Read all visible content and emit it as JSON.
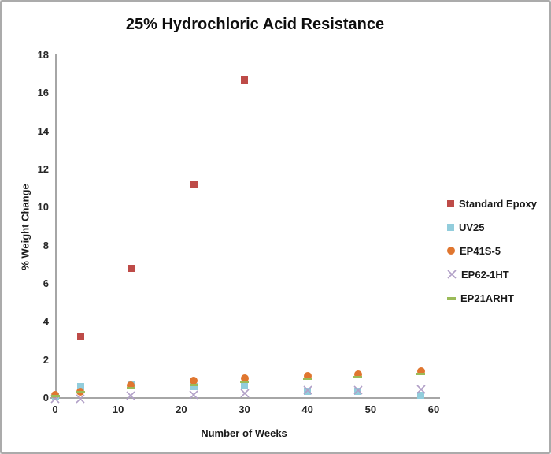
{
  "chart_data": {
    "type": "scatter",
    "title": "25% Hydrochloric Acid Resistance",
    "xlabel": "Number of Weeks",
    "ylabel": "% Weight Change",
    "xlim": [
      0,
      60
    ],
    "ylim": [
      0,
      18
    ],
    "x_ticks": [
      0,
      10,
      20,
      30,
      40,
      50,
      60
    ],
    "y_ticks": [
      0,
      2,
      4,
      6,
      8,
      10,
      12,
      14,
      16,
      18
    ],
    "grid": false,
    "legend_position": "right",
    "series": [
      {
        "name": "Standard Epoxy",
        "marker": "square",
        "color": "#be4b48",
        "points": [
          [
            0,
            0.1
          ],
          [
            4,
            3.2
          ],
          [
            12,
            6.8
          ],
          [
            22,
            11.2
          ],
          [
            30,
            16.7
          ]
        ]
      },
      {
        "name": "UV25",
        "marker": "square",
        "color": "#92cddc",
        "points": [
          [
            0,
            0.1
          ],
          [
            4,
            0.6
          ],
          [
            12,
            0.7
          ],
          [
            22,
            0.6
          ],
          [
            30,
            0.65
          ],
          [
            40,
            0.35
          ],
          [
            48,
            0.35
          ],
          [
            58,
            0.15
          ]
        ]
      },
      {
        "name": "EP41S-5",
        "marker": "circle",
        "color": "#e0762f",
        "points": [
          [
            0,
            0.15
          ],
          [
            4,
            0.35
          ],
          [
            12,
            0.65
          ],
          [
            22,
            0.9
          ],
          [
            30,
            1.05
          ],
          [
            40,
            1.15
          ],
          [
            48,
            1.25
          ],
          [
            58,
            1.4
          ]
        ]
      },
      {
        "name": "EP62-1HT",
        "marker": "x",
        "color": "#b1a0c7",
        "points": [
          [
            0,
            0.0
          ],
          [
            4,
            0.0
          ],
          [
            12,
            0.15
          ],
          [
            22,
            0.2
          ],
          [
            30,
            0.3
          ],
          [
            40,
            0.45
          ],
          [
            48,
            0.45
          ],
          [
            58,
            0.5
          ]
        ]
      },
      {
        "name": "EP21ARHT",
        "marker": "dash",
        "color": "#9bbb59",
        "points": [
          [
            0,
            0.1
          ],
          [
            4,
            0.3
          ],
          [
            12,
            0.5
          ],
          [
            22,
            0.7
          ],
          [
            30,
            0.85
          ],
          [
            40,
            1.0
          ],
          [
            48,
            1.1
          ],
          [
            58,
            1.25
          ]
        ]
      }
    ]
  }
}
